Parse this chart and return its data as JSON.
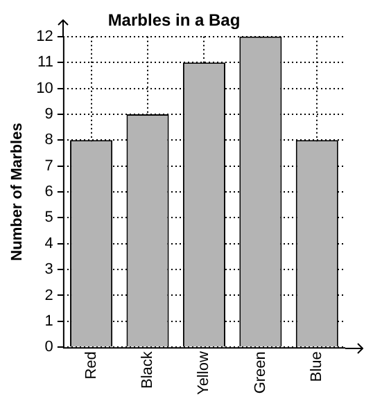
{
  "chart_data": {
    "type": "bar",
    "title": "Marbles in a Bag",
    "ylabel": "Number of Marbles",
    "categories": [
      "Red",
      "Black",
      "Yellow",
      "Green",
      "Blue"
    ],
    "values": [
      8,
      9,
      11,
      12,
      8
    ],
    "color": "#b4b4b4",
    "ylim": [
      0,
      12
    ],
    "yticks": [
      0,
      1,
      2,
      3,
      4,
      5,
      6,
      7,
      8,
      9,
      10,
      11,
      12
    ],
    "grid": true,
    "legend": false
  }
}
